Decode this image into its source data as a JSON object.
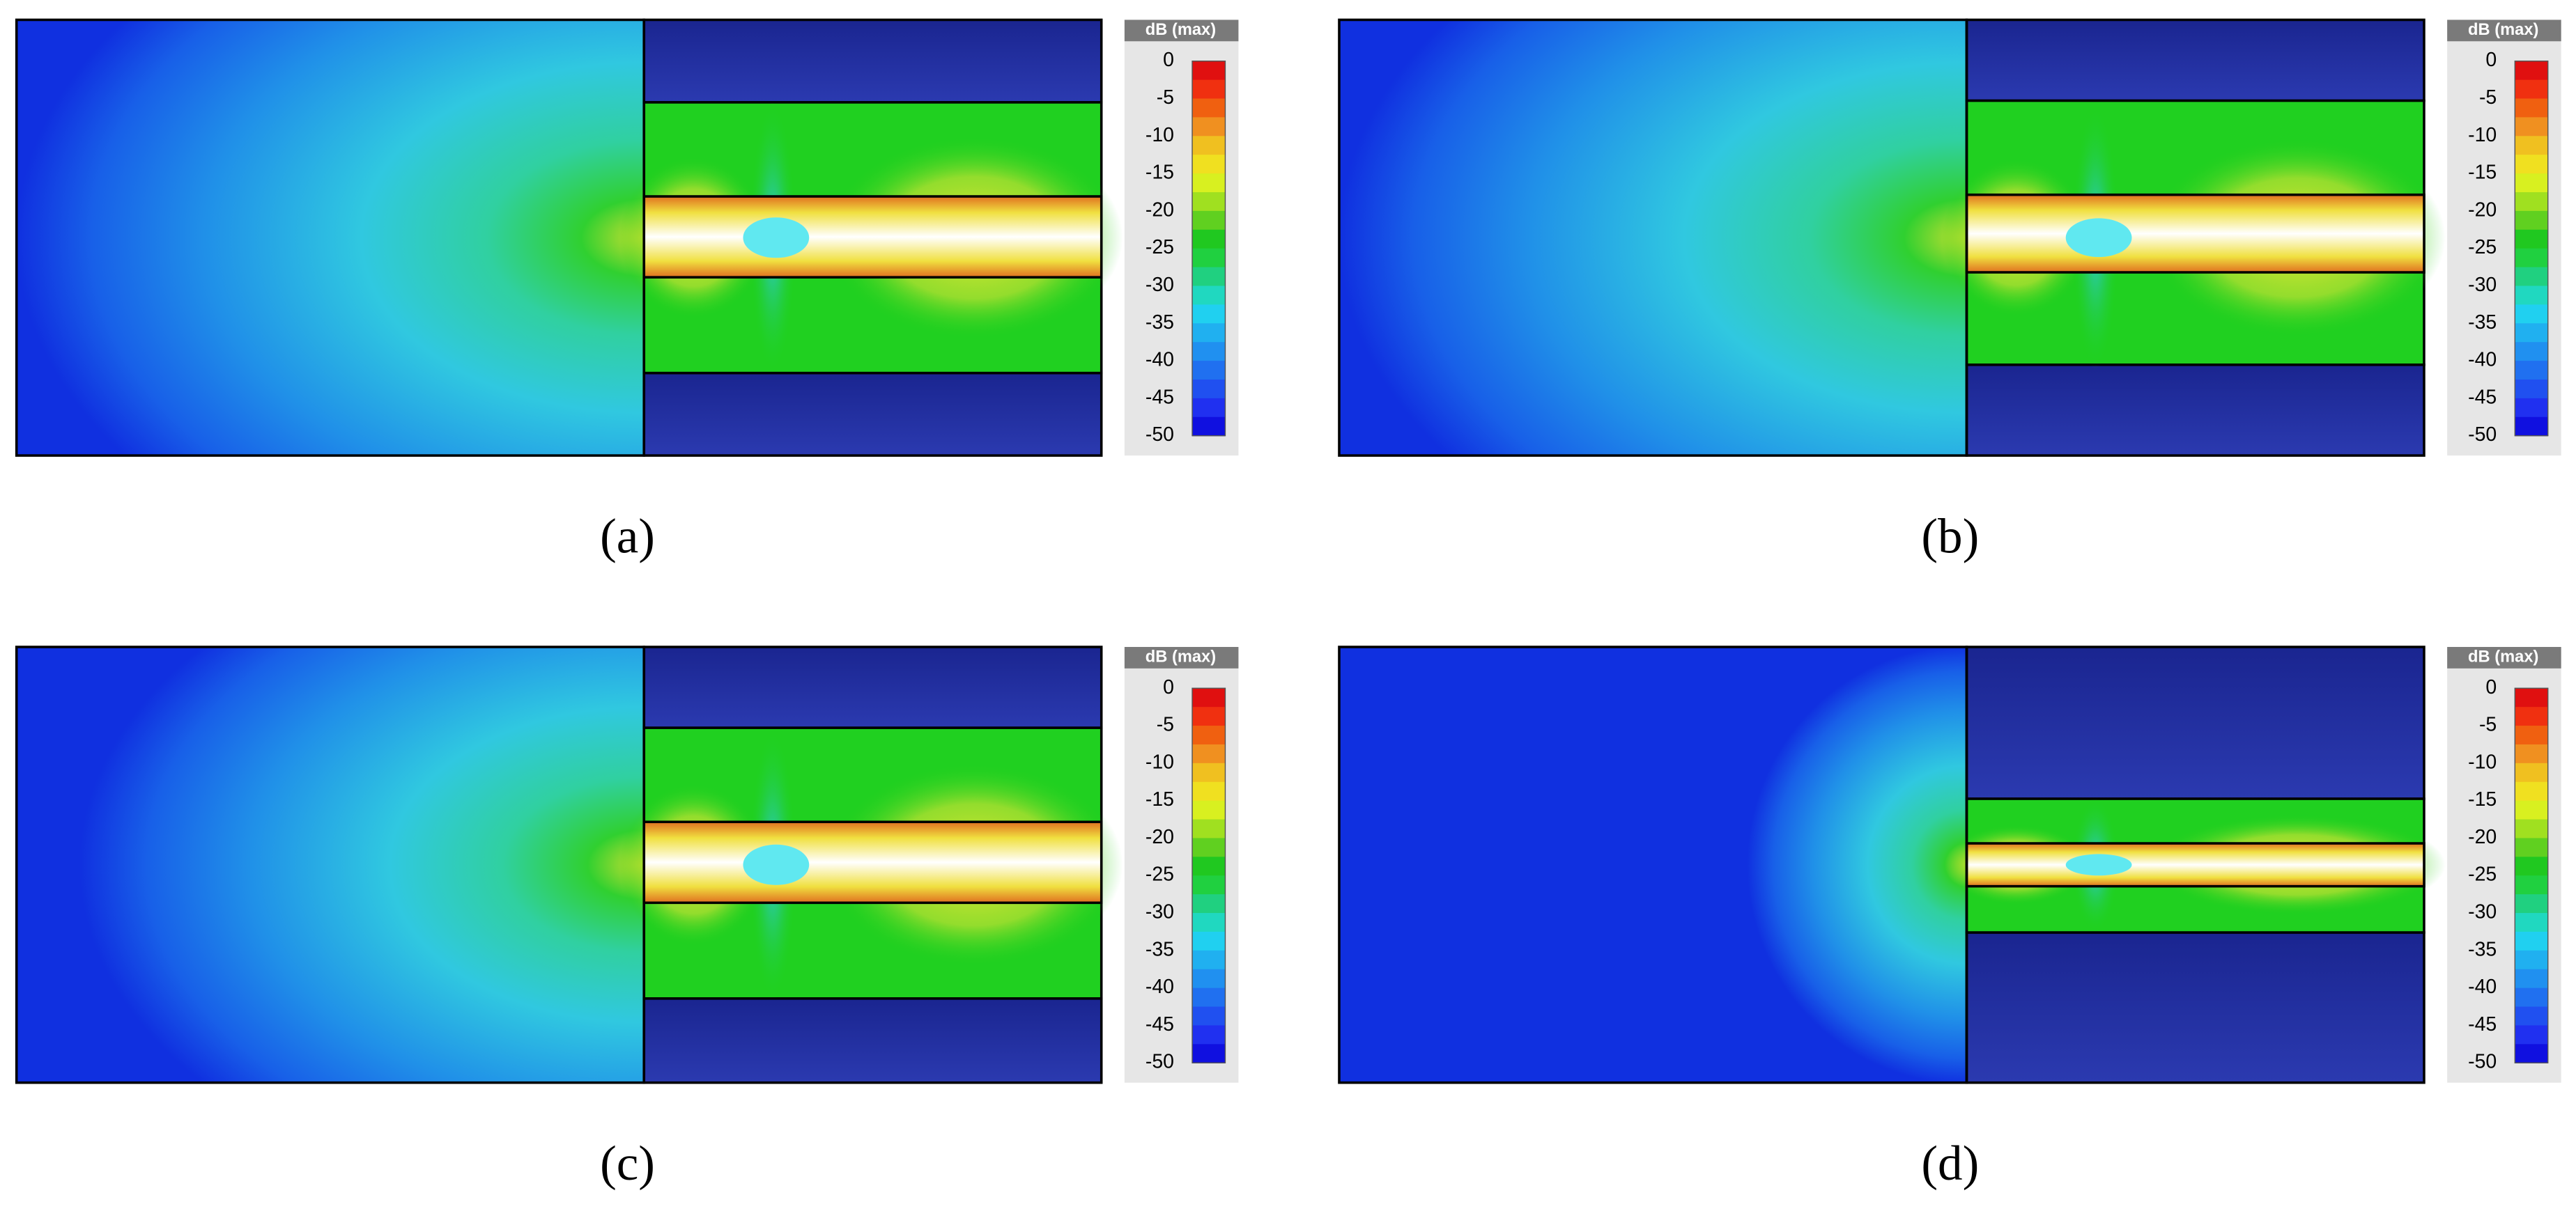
{
  "panels": [
    {
      "label": "(a)",
      "colorbar": {
        "title": "dB (max)",
        "ticks": [
          0,
          -5,
          -10,
          -15,
          -20,
          -25,
          -30,
          -35,
          -40,
          -45,
          -50
        ]
      }
    },
    {
      "label": "(b)",
      "colorbar": {
        "title": "dB (max)",
        "ticks": [
          0,
          -5,
          -10,
          -15,
          -20,
          -25,
          -30,
          -35,
          -40,
          -45,
          -50
        ]
      }
    },
    {
      "label": "(c)",
      "colorbar": {
        "title": "dB (max)",
        "ticks": [
          0,
          -5,
          -10,
          -15,
          -20,
          -25,
          -30,
          -35,
          -40,
          -45,
          -50
        ]
      }
    },
    {
      "label": "(d)",
      "colorbar": {
        "title": "dB (max)",
        "ticks": [
          0,
          -5,
          -10,
          -15,
          -20,
          -25,
          -30,
          -35,
          -40,
          -45,
          -50
        ]
      }
    }
  ]
}
